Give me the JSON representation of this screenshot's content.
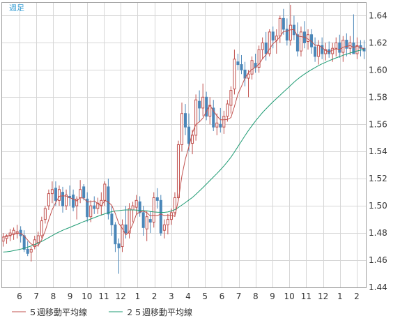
{
  "period_label": "週足",
  "legend": {
    "ma5_label": "５週移動平均線",
    "ma25_label": "２５週移動平均線"
  },
  "colors": {
    "bull": "#c0504d",
    "bear": "#4a86b8",
    "ma5": "#c0504d",
    "ma25": "#1e9b73",
    "grid": "#d6d6d6",
    "frame": "#a0a0a0",
    "label": "#333333",
    "period_label": "#3fa2d6"
  },
  "chart_data": {
    "type": "candlestick",
    "title": "",
    "xlabel": "",
    "ylabel": "",
    "ylim": [
      1.44,
      1.65
    ],
    "yticks": [
      1.44,
      1.46,
      1.48,
      1.5,
      1.52,
      1.54,
      1.56,
      1.58,
      1.6,
      1.62,
      1.64
    ],
    "month_ticks": [
      "6",
      "7",
      "8",
      "9",
      "10",
      "11",
      "12",
      "1",
      "2",
      "3",
      "4",
      "5",
      "6",
      "7",
      "8",
      "9",
      "10",
      "11",
      "12",
      "1",
      "2"
    ],
    "grid": true,
    "legend_position": "bottom",
    "candle_count": 104,
    "candles": [
      [
        1.474,
        1.48,
        1.47,
        1.477
      ],
      [
        1.476,
        1.479,
        1.472,
        1.478
      ],
      [
        1.478,
        1.483,
        1.474,
        1.48
      ],
      [
        1.479,
        1.484,
        1.475,
        1.482
      ],
      [
        1.48,
        1.486,
        1.476,
        1.481
      ],
      [
        1.482,
        1.485,
        1.473,
        1.478
      ],
      [
        1.478,
        1.482,
        1.466,
        1.468
      ],
      [
        1.468,
        1.474,
        1.463,
        1.465
      ],
      [
        1.466,
        1.47,
        1.459,
        1.468
      ],
      [
        1.47,
        1.478,
        1.468,
        1.475
      ],
      [
        1.473,
        1.481,
        1.47,
        1.478
      ],
      [
        1.478,
        1.492,
        1.476,
        1.489
      ],
      [
        1.49,
        1.5,
        1.487,
        1.498
      ],
      [
        1.5,
        1.512,
        1.497,
        1.509
      ],
      [
        1.509,
        1.518,
        1.502,
        1.512
      ],
      [
        1.513,
        1.518,
        1.5,
        1.504
      ],
      [
        1.504,
        1.515,
        1.5,
        1.512
      ],
      [
        1.51,
        1.514,
        1.495,
        1.5
      ],
      [
        1.5,
        1.512,
        1.497,
        1.508
      ],
      [
        1.507,
        1.515,
        1.5,
        1.506
      ],
      [
        1.508,
        1.512,
        1.496,
        1.499
      ],
      [
        1.5,
        1.507,
        1.49,
        1.505
      ],
      [
        1.506,
        1.519,
        1.502,
        1.512
      ],
      [
        1.514,
        1.516,
        1.504,
        1.506
      ],
      [
        1.505,
        1.51,
        1.488,
        1.492
      ],
      [
        1.492,
        1.504,
        1.488,
        1.5
      ],
      [
        1.5,
        1.507,
        1.494,
        1.498
      ],
      [
        1.498,
        1.506,
        1.494,
        1.502
      ],
      [
        1.5,
        1.51,
        1.493,
        1.504
      ],
      [
        1.504,
        1.518,
        1.5,
        1.516
      ],
      [
        1.514,
        1.52,
        1.49,
        1.494
      ],
      [
        1.494,
        1.5,
        1.478,
        1.486
      ],
      [
        1.486,
        1.488,
        1.466,
        1.472
      ],
      [
        1.472,
        1.476,
        1.45,
        1.469
      ],
      [
        1.47,
        1.49,
        1.466,
        1.486
      ],
      [
        1.486,
        1.5,
        1.476,
        1.48
      ],
      [
        1.48,
        1.502,
        1.476,
        1.498
      ],
      [
        1.497,
        1.503,
        1.488,
        1.5
      ],
      [
        1.499,
        1.508,
        1.494,
        1.504
      ],
      [
        1.503,
        1.507,
        1.492,
        1.495
      ],
      [
        1.495,
        1.5,
        1.478,
        1.484
      ],
      [
        1.483,
        1.496,
        1.474,
        1.492
      ],
      [
        1.49,
        1.496,
        1.48,
        1.488
      ],
      [
        1.488,
        1.51,
        1.484,
        1.506
      ],
      [
        1.506,
        1.513,
        1.498,
        1.504
      ],
      [
        1.504,
        1.508,
        1.478,
        1.48
      ],
      [
        1.482,
        1.49,
        1.476,
        1.486
      ],
      [
        1.486,
        1.494,
        1.479,
        1.49
      ],
      [
        1.49,
        1.498,
        1.486,
        1.495
      ],
      [
        1.495,
        1.51,
        1.492,
        1.506
      ],
      [
        1.506,
        1.548,
        1.504,
        1.545
      ],
      [
        1.545,
        1.576,
        1.54,
        1.568
      ],
      [
        1.568,
        1.575,
        1.552,
        1.558
      ],
      [
        1.558,
        1.568,
        1.54,
        1.546
      ],
      [
        1.546,
        1.556,
        1.538,
        1.552
      ],
      [
        1.552,
        1.582,
        1.548,
        1.578
      ],
      [
        1.577,
        1.585,
        1.562,
        1.572
      ],
      [
        1.572,
        1.59,
        1.566,
        1.58
      ],
      [
        1.58,
        1.584,
        1.563,
        1.566
      ],
      [
        1.566,
        1.58,
        1.56,
        1.574
      ],
      [
        1.572,
        1.578,
        1.555,
        1.558
      ],
      [
        1.558,
        1.568,
        1.552,
        1.561
      ],
      [
        1.56,
        1.572,
        1.554,
        1.558
      ],
      [
        1.558,
        1.57,
        1.553,
        1.566
      ],
      [
        1.566,
        1.578,
        1.562,
        1.575
      ],
      [
        1.574,
        1.588,
        1.568,
        1.585
      ],
      [
        1.586,
        1.615,
        1.582,
        1.608
      ],
      [
        1.606,
        1.612,
        1.6,
        1.604
      ],
      [
        1.604,
        1.611,
        1.597,
        1.6
      ],
      [
        1.6,
        1.606,
        1.588,
        1.594
      ],
      [
        1.594,
        1.6,
        1.58,
        1.597
      ],
      [
        1.597,
        1.61,
        1.593,
        1.607
      ],
      [
        1.605,
        1.612,
        1.598,
        1.602
      ],
      [
        1.602,
        1.618,
        1.598,
        1.615
      ],
      [
        1.615,
        1.624,
        1.608,
        1.62
      ],
      [
        1.62,
        1.628,
        1.607,
        1.612
      ],
      [
        1.612,
        1.63,
        1.61,
        1.628
      ],
      [
        1.628,
        1.632,
        1.616,
        1.622
      ],
      [
        1.622,
        1.63,
        1.612,
        1.625
      ],
      [
        1.625,
        1.64,
        1.62,
        1.638
      ],
      [
        1.638,
        1.645,
        1.626,
        1.63
      ],
      [
        1.63,
        1.638,
        1.618,
        1.622
      ],
      [
        1.622,
        1.648,
        1.618,
        1.633
      ],
      [
        1.633,
        1.64,
        1.622,
        1.626
      ],
      [
        1.626,
        1.635,
        1.61,
        1.614
      ],
      [
        1.614,
        1.632,
        1.61,
        1.628
      ],
      [
        1.628,
        1.636,
        1.616,
        1.62
      ],
      [
        1.621,
        1.63,
        1.615,
        1.626
      ],
      [
        1.626,
        1.63,
        1.612,
        1.617
      ],
      [
        1.617,
        1.624,
        1.606,
        1.61
      ],
      [
        1.61,
        1.622,
        1.604,
        1.618
      ],
      [
        1.618,
        1.624,
        1.608,
        1.612
      ],
      [
        1.612,
        1.62,
        1.607,
        1.615
      ],
      [
        1.615,
        1.621,
        1.609,
        1.612
      ],
      [
        1.612,
        1.62,
        1.606,
        1.616
      ],
      [
        1.616,
        1.624,
        1.61,
        1.62
      ],
      [
        1.62,
        1.626,
        1.609,
        1.613
      ],
      [
        1.613,
        1.625,
        1.606,
        1.622
      ],
      [
        1.622,
        1.627,
        1.61,
        1.616
      ],
      [
        1.616,
        1.625,
        1.611,
        1.62
      ],
      [
        1.62,
        1.641,
        1.612,
        1.612
      ],
      [
        1.612,
        1.624,
        1.608,
        1.618
      ],
      [
        1.618,
        1.622,
        1.61,
        1.616
      ],
      [
        1.616,
        1.622,
        1.608,
        1.614
      ]
    ],
    "ma5": [
      1.477,
      1.4775,
      1.4783,
      1.4795,
      1.4796,
      1.4798,
      1.4778,
      1.4748,
      1.472,
      1.4708,
      1.4708,
      1.475,
      1.4816,
      1.4898,
      1.4972,
      1.5024,
      1.507,
      1.5074,
      1.5072,
      1.506,
      1.505,
      1.5036,
      1.506,
      1.5056,
      1.5028,
      1.503,
      1.5036,
      1.5016,
      1.5,
      1.504,
      1.5028,
      1.5004,
      1.4944,
      1.487,
      1.4834,
      1.4786,
      1.481,
      1.4866,
      1.4936,
      1.4954,
      1.4962,
      1.495,
      1.4926,
      1.493,
      1.4928,
      1.494,
      1.4928,
      1.4932,
      1.493,
      1.4922,
      1.5044,
      1.522,
      1.5344,
      1.5434,
      1.5538,
      1.56,
      1.5618,
      1.5646,
      1.5696,
      1.574,
      1.57,
      1.5662,
      1.5634,
      1.5634,
      1.5636,
      1.565,
      1.5732,
      1.5822,
      1.588,
      1.594,
      1.598,
      1.6004,
      1.602,
      1.6042,
      1.6082,
      1.6112,
      1.6154,
      1.6194,
      1.6214,
      1.6246,
      1.6284,
      1.6286,
      1.6296,
      1.6298,
      1.625,
      1.6246,
      1.6242,
      1.6228,
      1.621,
      1.6182,
      1.6182,
      1.6166,
      1.6144,
      1.6134,
      1.6146,
      1.6156,
      1.6152,
      1.6168,
      1.6174,
      1.618,
      1.6166,
      1.6176,
      1.6164,
      1.6156
    ],
    "ma25": [
      1.466,
      1.4662,
      1.4665,
      1.467,
      1.4675,
      1.4681,
      1.4688,
      1.4696,
      1.4705,
      1.4715,
      1.4726,
      1.4738,
      1.4752,
      1.4766,
      1.4781,
      1.4795,
      1.4808,
      1.482,
      1.4831,
      1.4841,
      1.4852,
      1.4862,
      1.4873,
      1.4884,
      1.4893,
      1.4903,
      1.4913,
      1.4923,
      1.4932,
      1.4941,
      1.495,
      1.4957,
      1.4962,
      1.4965,
      1.4968,
      1.497,
      1.497,
      1.497,
      1.4969,
      1.4967,
      1.4965,
      1.4963,
      1.4958,
      1.4955,
      1.4953,
      1.4952,
      1.4952,
      1.4955,
      1.4962,
      1.4972,
      1.4988,
      1.5006,
      1.5024,
      1.5043,
      1.5062,
      1.5085,
      1.5109,
      1.5134,
      1.516,
      1.5186,
      1.5212,
      1.5238,
      1.5265,
      1.5294,
      1.5325,
      1.5358,
      1.5396,
      1.5436,
      1.5476,
      1.5516,
      1.5554,
      1.559,
      1.5624,
      1.5656,
      1.5686,
      1.5714,
      1.574,
      1.5766,
      1.579,
      1.5814,
      1.5838,
      1.5862,
      1.5886,
      1.591,
      1.5932,
      1.5952,
      1.597,
      1.5987,
      1.6003,
      1.6018,
      1.6032,
      1.6045,
      1.6057,
      1.6068,
      1.6079,
      1.6089,
      1.6099,
      1.6108,
      1.6117,
      1.6125,
      1.6133,
      1.614,
      1.6146,
      1.6152
    ]
  }
}
